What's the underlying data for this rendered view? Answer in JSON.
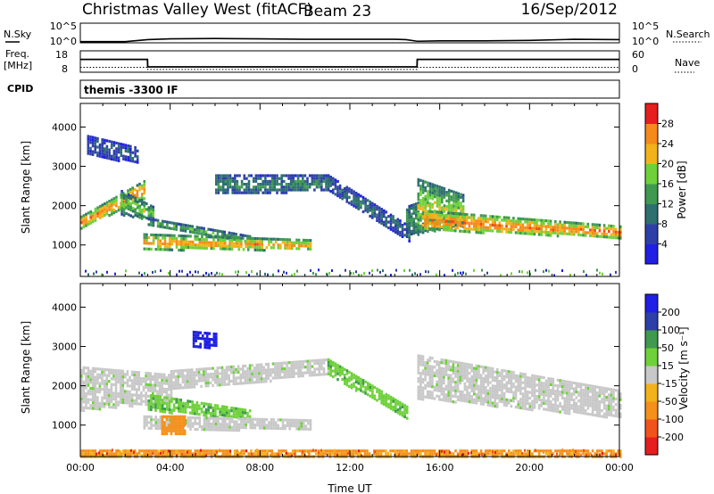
{
  "header": {
    "title": "Christmas Valley West (fitACF)",
    "beam": "Beam 23",
    "date": "16/Sep/2012"
  },
  "noise_panel": {
    "left_label": "N.Sky",
    "right_label": "N.Search",
    "left_ticks": [
      "10^5",
      "10^0"
    ],
    "right_ticks": [
      "10^5",
      "10^0"
    ]
  },
  "freq_panel": {
    "left_label_1": "Freq.",
    "left_label_2": "[MHz]",
    "right_label": "Nave",
    "left_ticks": [
      "18",
      "8"
    ],
    "right_ticks": [
      "60",
      "0"
    ]
  },
  "cpid_panel": {
    "label": "CPID",
    "text": "themis -3300 IF"
  },
  "colors": {
    "power": [
      "#1f1fe6",
      "#2f3fa8",
      "#2e6f6f",
      "#3f9a4f",
      "#6fd13a",
      "#f2b21a",
      "#f58a1a",
      "#f24a1a",
      "#e61e1e"
    ],
    "velocity": [
      "#e61e1e",
      "#f2531a",
      "#f5901a",
      "#f2b21a",
      "#c8c8c8",
      "#6fd13a",
      "#3f9a4f",
      "#2f3fa8",
      "#1f1fe6"
    ],
    "ground_scatter": "#c8c8c8"
  },
  "chart_data": [
    {
      "type": "line",
      "id": "noise",
      "x": [
        0,
        2,
        3,
        4,
        6,
        8,
        10,
        12,
        14,
        14.5,
        15,
        16,
        18,
        20,
        22,
        24
      ],
      "series": [
        {
          "values": [
            0.3,
            0.3,
            0.8,
            1.0,
            1.1,
            1.0,
            0.9,
            0.9,
            0.9,
            0.8,
            0.4,
            0.5,
            0.5,
            0.6,
            0.9,
            0.8
          ]
        }
      ],
      "xlim": [
        0,
        24
      ],
      "ylim": [
        0,
        5
      ]
    },
    {
      "type": "line",
      "id": "frequency",
      "x": [
        0,
        2.99,
        3.0,
        14.99,
        15.0,
        24
      ],
      "series": [
        {
          "values": [
            14,
            14,
            10.5,
            10.5,
            14,
            14
          ]
        },
        {
          "values": [
            10.3,
            10.3,
            9.3,
            9.3,
            10.3,
            10.3
          ]
        }
      ],
      "left_ylim": [
        8,
        18
      ],
      "right_ylim": [
        0,
        60
      ]
    },
    {
      "type": "heatmap",
      "id": "power",
      "ylabel": "Slant Range [km]",
      "yticks": [
        1000,
        2000,
        3000,
        4000
      ],
      "ylim": [
        200,
        4600
      ],
      "xlim": [
        0,
        24
      ],
      "colorbar": {
        "label": "Power [dB]",
        "ticks": [
          "4",
          "8",
          "12",
          "16",
          "20",
          "24",
          "28"
        ],
        "range": [
          0,
          32
        ]
      },
      "bands": [
        {
          "t0": 0.0,
          "t1": 2.8,
          "r0": 1450,
          "r1": 1750,
          "r2": 2200,
          "r3": 2650,
          "power": 26
        },
        {
          "t0": 1.8,
          "t1": 3.2,
          "r0": 1800,
          "r1": 2400,
          "r2": 1650,
          "r3": 2000,
          "power": 16
        },
        {
          "t0": 3.0,
          "t1": 7.5,
          "r0": 1500,
          "r1": 1700,
          "r2": 1050,
          "r3": 1250,
          "power": 14
        },
        {
          "t0": 2.8,
          "t1": 10.2,
          "r0": 900,
          "r1": 1300,
          "r2": 900,
          "r3": 1150,
          "power": 24
        },
        {
          "t0": 6.0,
          "t1": 11.0,
          "r0": 2300,
          "r1": 2800,
          "r2": 2400,
          "r3": 2800,
          "power": 10
        },
        {
          "t0": 11.0,
          "t1": 14.6,
          "r0": 2400,
          "r1": 2800,
          "r2": 1100,
          "r3": 1500,
          "power": 8
        },
        {
          "t0": 14.5,
          "t1": 15.0,
          "r0": 1300,
          "r1": 2000,
          "r2": 1300,
          "r3": 2100,
          "power": 12
        },
        {
          "t0": 15.0,
          "t1": 17.0,
          "r0": 1300,
          "r1": 2700,
          "r2": 1500,
          "r3": 2300,
          "power": 18
        },
        {
          "t0": 15.2,
          "t1": 24.0,
          "r0": 1400,
          "r1": 1900,
          "r2": 1200,
          "r3": 1500,
          "power": 27
        },
        {
          "t0": 0.3,
          "t1": 2.5,
          "r0": 3300,
          "r1": 3800,
          "r2": 3100,
          "r3": 3500,
          "power": 6
        }
      ]
    },
    {
      "type": "heatmap",
      "id": "velocity",
      "ylabel": "Slant Range [km]",
      "yticks": [
        1000,
        2000,
        3000,
        4000
      ],
      "ylim": [
        200,
        4600
      ],
      "xlim": [
        0,
        24
      ],
      "xlabel": "Time UT",
      "xticks": [
        "00:00",
        "04:00",
        "08:00",
        "12:00",
        "16:00",
        "20:00",
        "00:00"
      ],
      "colorbar": {
        "label": "Velocity [m s⁻¹]",
        "ticks": [
          "-200",
          "-100",
          "-50",
          "-15",
          "15",
          "50",
          "100",
          "200"
        ],
        "range": [
          -250,
          250
        ]
      },
      "bands": [
        {
          "t0": 0.0,
          "t1": 4.0,
          "r0": 1400,
          "r1": 2500,
          "r2": 1600,
          "r3": 2300,
          "velocity": 0
        },
        {
          "t0": 4.0,
          "t1": 11.0,
          "r0": 1900,
          "r1": 2400,
          "r2": 2300,
          "r3": 2700,
          "velocity": 0
        },
        {
          "t0": 3.0,
          "t1": 7.5,
          "r0": 1400,
          "r1": 1800,
          "r2": 1150,
          "r3": 1400,
          "velocity": 40
        },
        {
          "t0": 2.8,
          "t1": 10.2,
          "r0": 900,
          "r1": 1250,
          "r2": 900,
          "r3": 1150,
          "velocity": 0
        },
        {
          "t0": 3.6,
          "t1": 4.6,
          "r0": 800,
          "r1": 1250,
          "r2": 800,
          "r3": 1250,
          "velocity": -70
        },
        {
          "t0": 11.0,
          "t1": 14.5,
          "r0": 2300,
          "r1": 2700,
          "r2": 1200,
          "r3": 1500,
          "velocity": 35
        },
        {
          "t0": 15.0,
          "t1": 24.0,
          "r0": 1700,
          "r1": 2800,
          "r2": 1200,
          "r3": 1900,
          "velocity": 0
        },
        {
          "t0": 5.0,
          "t1": 6.0,
          "r0": 3000,
          "r1": 3400,
          "r2": 3000,
          "r3": 3350,
          "velocity": 220
        },
        {
          "t0": 0.0,
          "t1": 24.0,
          "r0": 230,
          "r1": 380,
          "r2": 230,
          "r3": 380,
          "velocity": -60
        }
      ]
    }
  ]
}
